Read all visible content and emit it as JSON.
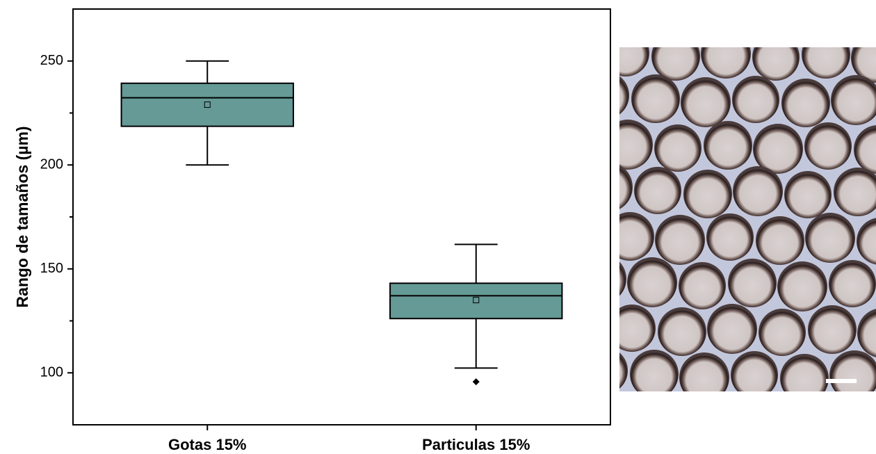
{
  "chart_data": {
    "type": "box",
    "ylabel": "Rango de tamaños (µm)",
    "categories": [
      "Gotas 15%",
      "Particulas 15%"
    ],
    "color": "#659a96",
    "boxes": [
      {
        "whisker_low": 200,
        "q1": 218.6,
        "median": 232.3,
        "q3": 239.3,
        "whisker_high": 250,
        "mean": 229,
        "outliers": []
      },
      {
        "whisker_low": 102.3,
        "q1": 126.1,
        "median": 137.1,
        "q3": 143.1,
        "whisker_high": 161.8,
        "mean": 135,
        "outliers": [
          95.7
        ]
      }
    ],
    "ylim": [
      75,
      275
    ],
    "yticks": [
      100,
      150,
      200,
      250
    ],
    "yminorticks": [
      125,
      175,
      225
    ]
  }
}
